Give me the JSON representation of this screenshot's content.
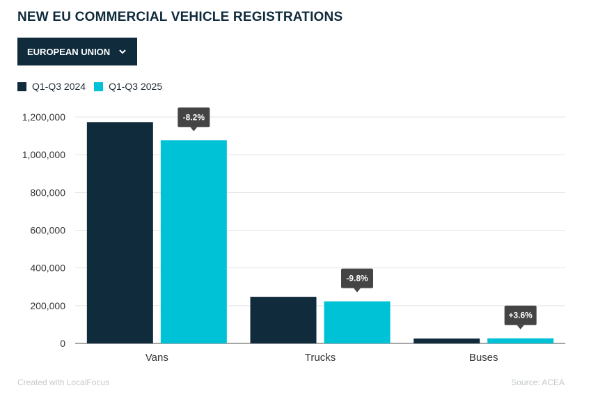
{
  "title": "NEW EU COMMERCIAL VEHICLE REGISTRATIONS",
  "dropdown": {
    "label": "EUROPEAN UNION",
    "icon": "chevron-down-icon"
  },
  "colors": {
    "series_2024": "#0f2b3c",
    "series_2025": "#00c2d7",
    "badge": "#444444",
    "dropdown_bg": "#0f2b3c"
  },
  "footer": {
    "credit": "Created with LocalFocus",
    "source": "Source:  ACEA"
  },
  "chart_data": {
    "type": "bar",
    "categories": [
      "Vans",
      "Trucks",
      "Buses"
    ],
    "series": [
      {
        "name": "Q1-Q3 2024",
        "values": [
          1173000,
          247000,
          26000
        ]
      },
      {
        "name": "Q1-Q3 2025",
        "values": [
          1077000,
          223000,
          27000
        ]
      }
    ],
    "annotations": [
      "-8.2%",
      "-9.8%",
      "+3.6%"
    ],
    "yticks": [
      "0",
      "200,000",
      "400,000",
      "600,000",
      "800,000",
      "1,000,000",
      "1,200,000"
    ],
    "ylim": [
      0,
      1200000
    ],
    "grid": true,
    "legend": "top-left",
    "title": "NEW EU COMMERCIAL VEHICLE REGISTRATIONS"
  }
}
